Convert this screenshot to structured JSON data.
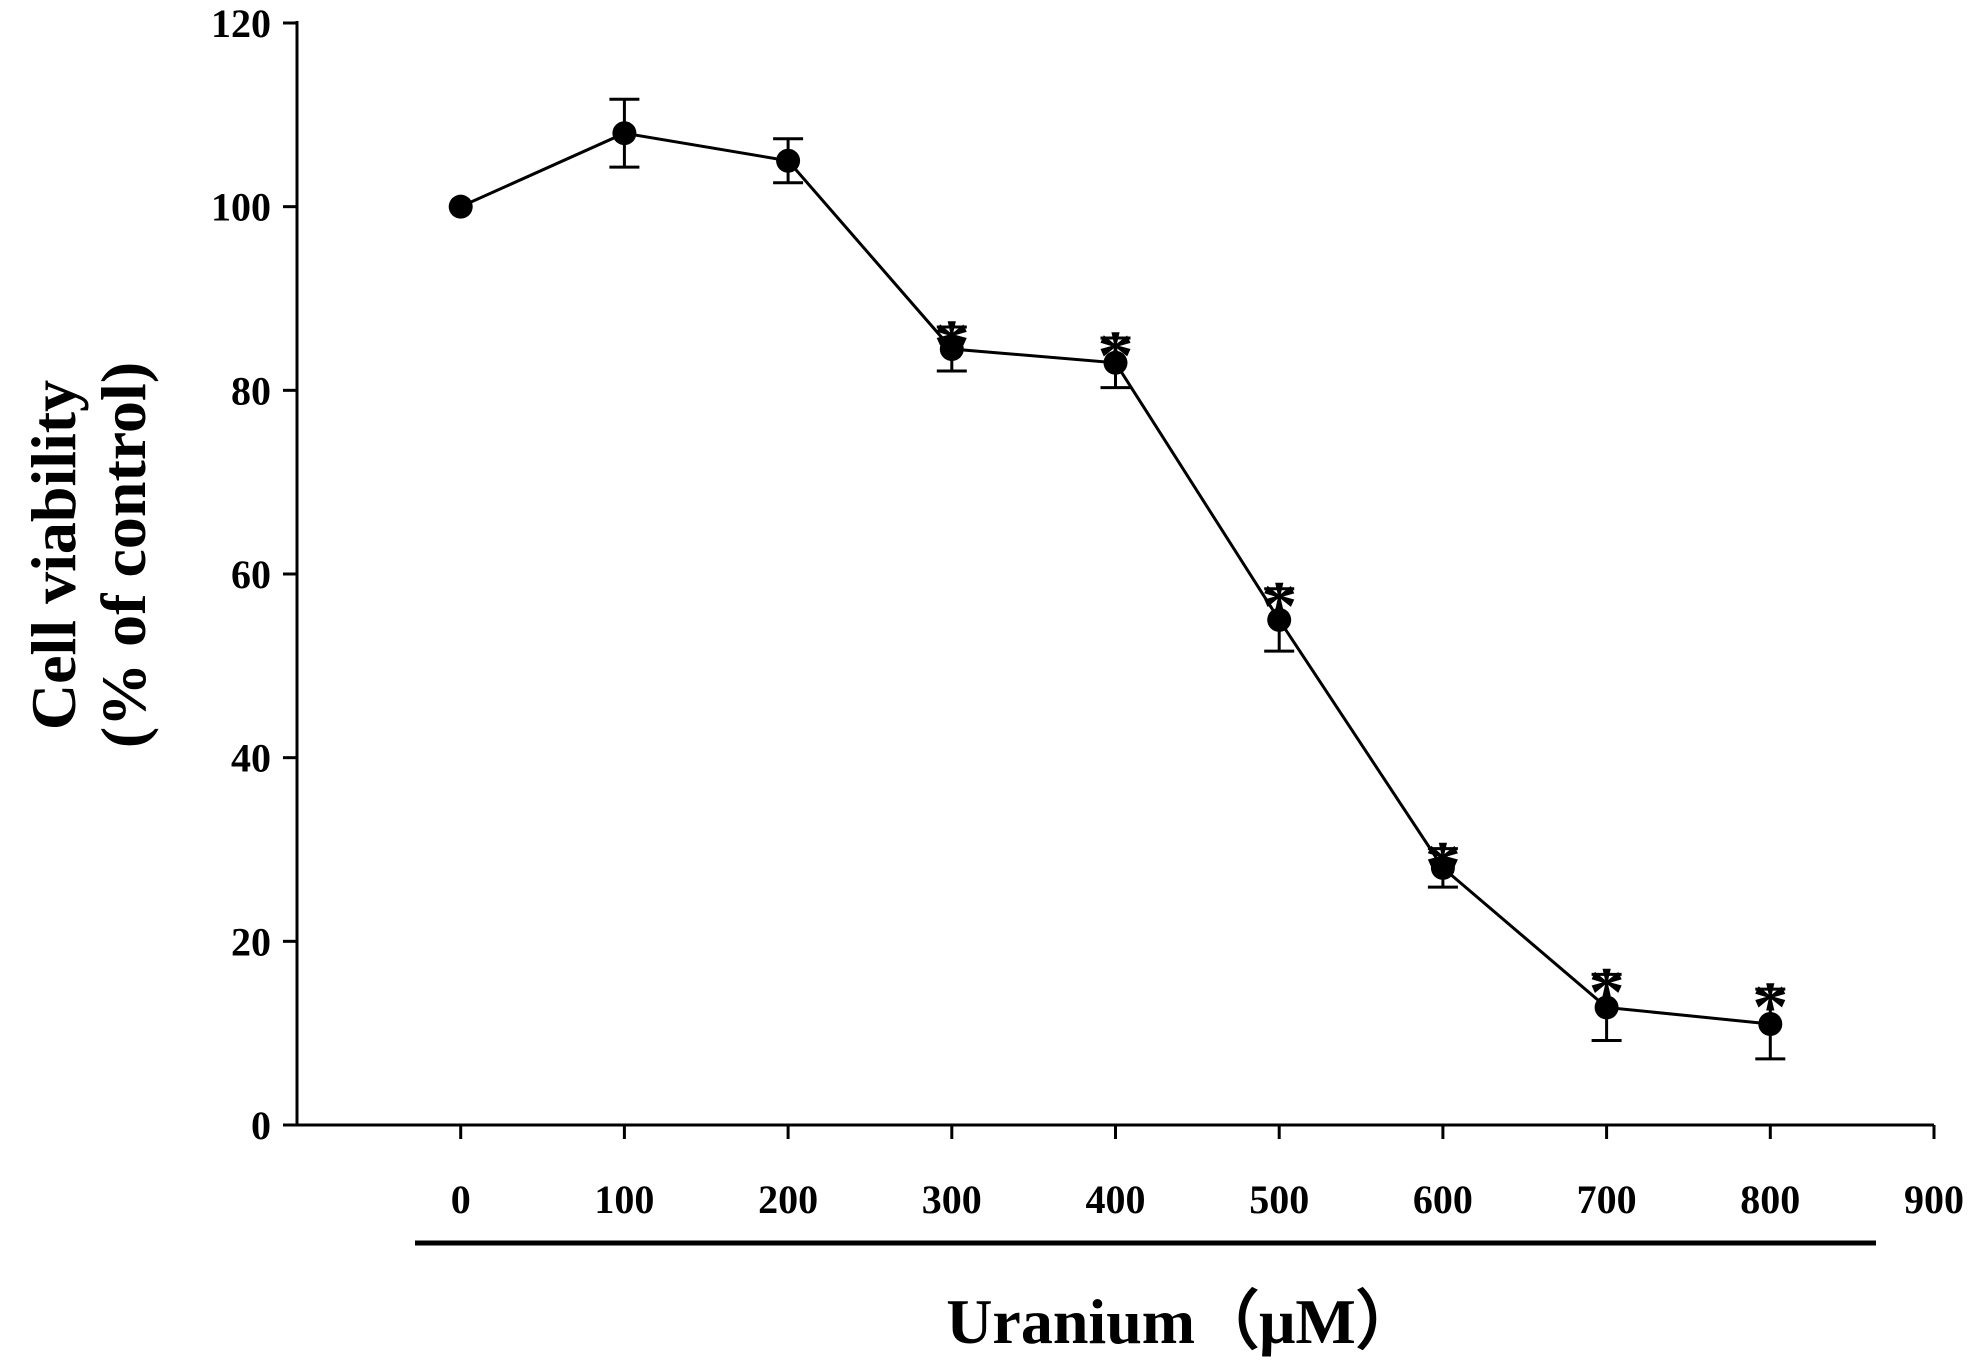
{
  "chart_data": {
    "type": "line",
    "xlabel": "Uranium（μM）",
    "ylabel_lines": [
      "Cell viability",
      "(% of control)"
    ],
    "x_ticks": [
      0,
      100,
      200,
      300,
      400,
      500,
      600,
      700,
      800,
      900
    ],
    "y_ticks": [
      0,
      20,
      40,
      60,
      80,
      100,
      120
    ],
    "xlim": [
      -100,
      900
    ],
    "ylim": [
      0,
      120
    ],
    "grid": false,
    "significance_marker": "*",
    "series": [
      {
        "x": [
          0,
          100,
          200,
          300,
          400,
          500,
          600,
          700,
          800
        ],
        "y": [
          100,
          108,
          105,
          84.5,
          83,
          55,
          28,
          12.8,
          11
        ],
        "error": [
          0,
          3.7,
          2.4,
          2.4,
          2.7,
          3.4,
          2.1,
          3.6,
          3.8
        ],
        "significant": [
          false,
          false,
          false,
          true,
          true,
          true,
          true,
          true,
          true
        ],
        "color": "#000000"
      }
    ]
  }
}
